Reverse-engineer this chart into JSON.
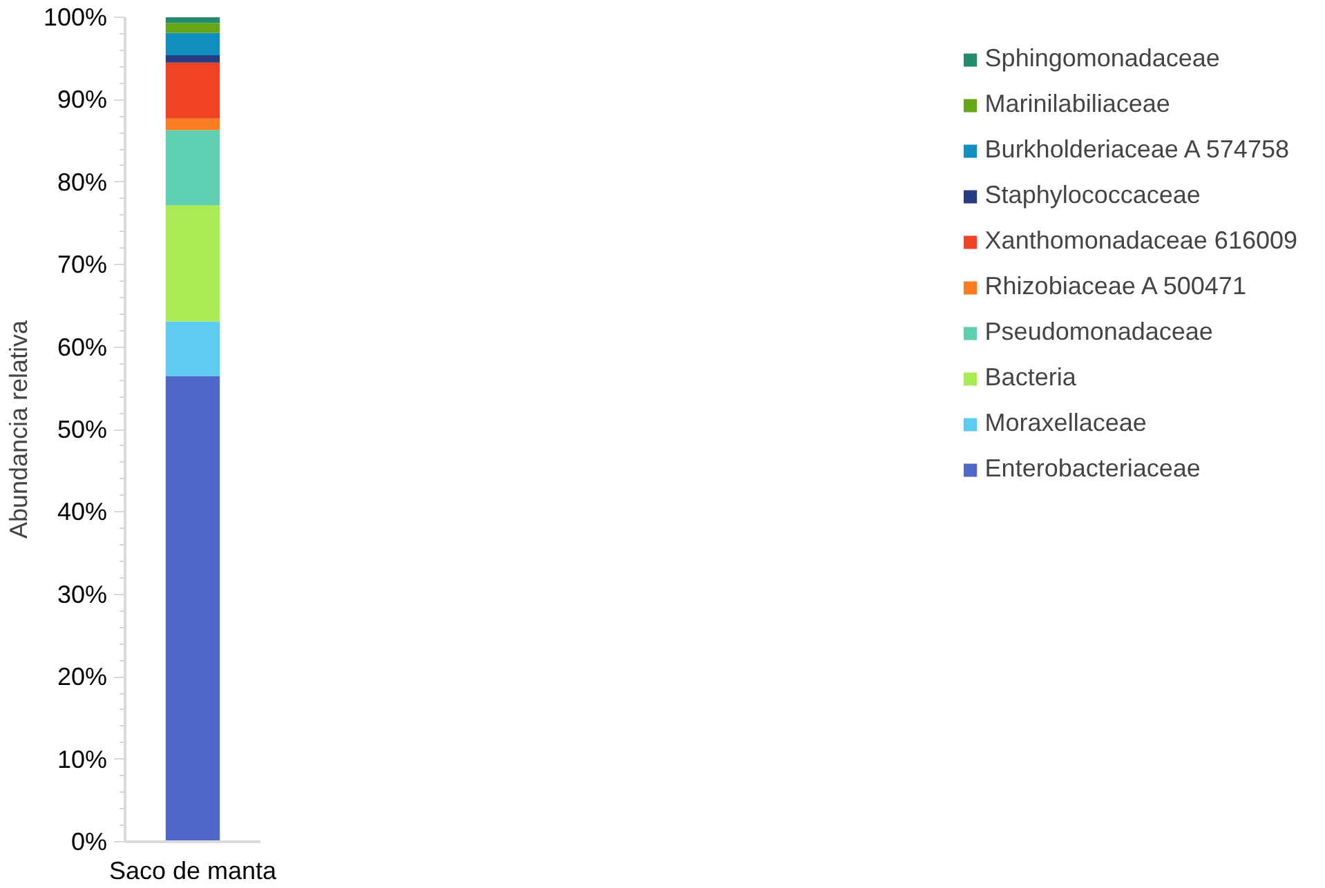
{
  "chart_data": {
    "type": "bar",
    "stacked": true,
    "ylabel": "Abundancia relativa",
    "categories": [
      "Saco de manta"
    ],
    "series": [
      {
        "name": "Enterobacteriaceae",
        "color": "#4f67c8",
        "values": [
          56.5
        ]
      },
      {
        "name": "Moraxellaceae",
        "color": "#5ecbf1",
        "values": [
          6.6
        ]
      },
      {
        "name": "Bacteria",
        "color": "#aaeb52",
        "values": [
          14.1
        ]
      },
      {
        "name": "Pseudomonadaceae",
        "color": "#5ecfb1",
        "values": [
          9.1
        ]
      },
      {
        "name": "Rhizobiaceae A 500471",
        "color": "#fb7d21",
        "values": [
          1.4
        ]
      },
      {
        "name": "Xanthomonadaceae 616009",
        "color": "#f04325",
        "values": [
          6.8
        ]
      },
      {
        "name": "Staphylococcaceae",
        "color": "#283c82",
        "values": [
          0.9
        ]
      },
      {
        "name": "Burkholderiaceae A 574758",
        "color": "#1190bf",
        "values": [
          2.7
        ]
      },
      {
        "name": "Marinilabiliaceae",
        "color": "#66a619",
        "values": [
          1.2
        ]
      },
      {
        "name": "Sphingomonadaceae",
        "color": "#258b6e",
        "values": [
          0.7
        ]
      }
    ],
    "ylim": [
      0,
      100
    ],
    "yticks": [
      {
        "value": 0,
        "label": "0%"
      },
      {
        "value": 10,
        "label": "10%"
      },
      {
        "value": 20,
        "label": "20%"
      },
      {
        "value": 30,
        "label": "30%"
      },
      {
        "value": 40,
        "label": "40%"
      },
      {
        "value": 50,
        "label": "50%"
      },
      {
        "value": 60,
        "label": "60%"
      },
      {
        "value": 70,
        "label": "70%"
      },
      {
        "value": 80,
        "label": "80%"
      },
      {
        "value": 90,
        "label": "90%"
      },
      {
        "value": 100,
        "label": "100%"
      }
    ],
    "grid": false,
    "legend": "right"
  }
}
